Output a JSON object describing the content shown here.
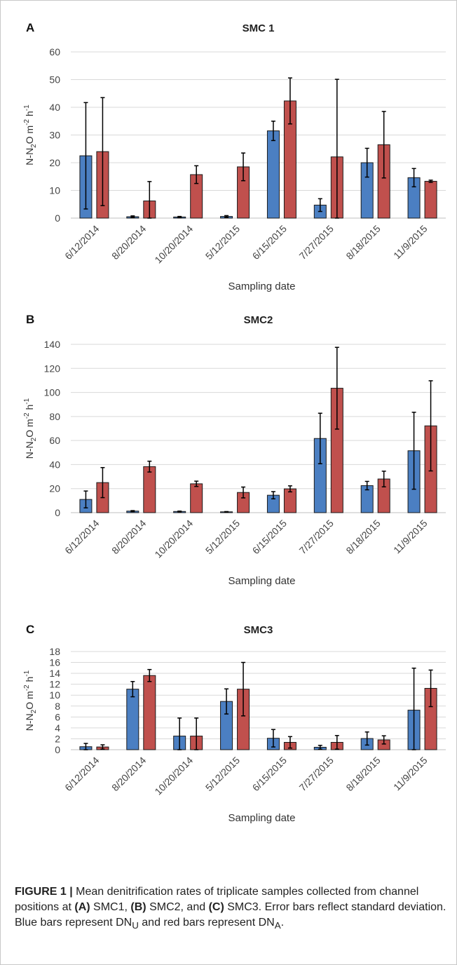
{
  "chart_data": [
    {
      "panel": "A",
      "title": "SMC 1",
      "type": "bar",
      "ylabel_parts": [
        "N-N",
        "2",
        "O m",
        "-2",
        " h",
        "-1"
      ],
      "xlabel": "Sampling date",
      "ylim": [
        0,
        60
      ],
      "yticks": [
        0,
        10,
        20,
        30,
        40,
        50,
        60
      ],
      "categories": [
        "6/12/2014",
        "8/20/2014",
        "10/20/2014",
        "5/12/2015",
        "6/15/2015",
        "7/27/2015",
        "8/18/2015",
        "11/9/2015"
      ],
      "series": [
        {
          "values": [
            22.5,
            0.5,
            0.4,
            0.6,
            31.5,
            4.7,
            20.0,
            14.6
          ],
          "errors": [
            19.2,
            0.3,
            0.2,
            0.3,
            3.5,
            2.3,
            5.2,
            3.3
          ],
          "color": "#4b7fc2"
        },
        {
          "values": [
            24.0,
            6.2,
            15.7,
            18.5,
            42.3,
            22.1,
            26.5,
            13.3
          ],
          "errors": [
            19.5,
            7.0,
            3.2,
            5.0,
            8.3,
            28.0,
            12.0,
            0.4
          ],
          "color": "#c0504d"
        }
      ],
      "grid": true
    },
    {
      "panel": "B",
      "title": "SMC2",
      "type": "bar",
      "ylabel_parts": [
        "N-N",
        "2",
        "O m",
        "-2",
        " h",
        "-1"
      ],
      "xlabel": "Sampling date",
      "ylim": [
        0,
        140
      ],
      "yticks": [
        0,
        20,
        40,
        60,
        80,
        100,
        120,
        140
      ],
      "categories": [
        "6/12/2014",
        "8/20/2014",
        "10/20/2014",
        "5/12/2015",
        "6/15/2015",
        "7/27/2015",
        "8/18/2015",
        "11/9/2015"
      ],
      "series": [
        {
          "values": [
            11.0,
            1.3,
            1.0,
            0.7,
            14.5,
            61.7,
            22.5,
            51.5
          ],
          "errors": [
            7.0,
            0.4,
            0.3,
            0.2,
            3.0,
            21.0,
            3.5,
            32.0
          ],
          "color": "#4b7fc2"
        },
        {
          "values": [
            25.0,
            38.3,
            24.0,
            16.8,
            19.8,
            103.5,
            28.0,
            72.2
          ],
          "errors": [
            12.5,
            4.5,
            2.2,
            4.5,
            2.5,
            34.0,
            6.5,
            37.5
          ],
          "color": "#c0504d"
        }
      ],
      "grid": true
    },
    {
      "panel": "C",
      "title": "SMC3",
      "type": "bar",
      "ylabel_parts": [
        "N-N",
        "2",
        "O m",
        "-2",
        " h",
        "-1"
      ],
      "xlabel": "Sampling date",
      "ylim": [
        0,
        18
      ],
      "yticks": [
        0,
        2,
        4,
        6,
        8,
        10,
        12,
        14,
        16,
        18
      ],
      "categories": [
        "6/12/2014",
        "8/20/2014",
        "10/20/2014",
        "5/12/2015",
        "6/15/2015",
        "7/27/2015",
        "8/18/2015",
        "11/9/2015"
      ],
      "series": [
        {
          "values": [
            0.55,
            11.1,
            2.5,
            8.85,
            2.1,
            0.45,
            2.05,
            7.25
          ],
          "errors": [
            0.6,
            1.4,
            3.3,
            2.3,
            1.6,
            0.35,
            1.2,
            7.7
          ],
          "color": "#4b7fc2"
        },
        {
          "values": [
            0.5,
            13.6,
            2.5,
            11.1,
            1.35,
            1.35,
            1.8,
            11.25
          ],
          "errors": [
            0.4,
            1.1,
            3.3,
            4.9,
            1.05,
            1.25,
            0.75,
            3.35
          ],
          "color": "#c0504d"
        }
      ],
      "grid": true
    }
  ],
  "caption": {
    "label": "FIGURE 1 |",
    "t1": " Mean denitrification rates of triplicate samples collected from channel positions at ",
    "a": "(A)",
    "t2": " SMC1, ",
    "b": "(B)",
    "t3": " SMC2, and ",
    "c": "(C)",
    "t4": " SMC3. Error bars reflect standard deviation. Blue bars represent DN",
    "sub_u": "U",
    "t5": " and red bars represent DN",
    "sub_a": "A",
    "t6": "."
  }
}
